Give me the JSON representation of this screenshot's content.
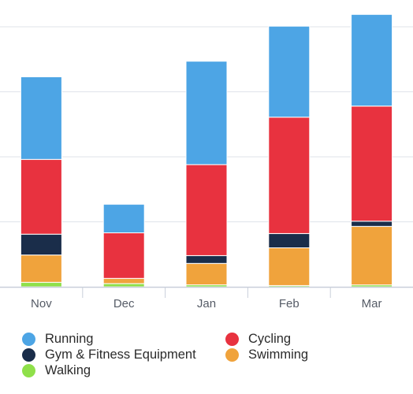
{
  "chart_data": {
    "type": "bar",
    "stacked": true,
    "categories": [
      "Nov",
      "Dec",
      "Jan",
      "Feb",
      "Mar"
    ],
    "series": [
      {
        "name": "Walking",
        "color": "#8fe04a",
        "values": [
          0.7,
          0.5,
          0.3,
          0.2,
          0.3
        ]
      },
      {
        "name": "Swimming",
        "color": "#f0a33c",
        "values": [
          4.2,
          0.8,
          3.3,
          5.8,
          9.0
        ]
      },
      {
        "name": "Gym & Fitness Equipment",
        "color": "#1a2d4a",
        "values": [
          3.2,
          0,
          1.2,
          2.2,
          0.8
        ]
      },
      {
        "name": "Cycling",
        "color": "#e8323f",
        "values": [
          11.5,
          7.0,
          14.0,
          17.9,
          17.7
        ]
      },
      {
        "name": "Running",
        "color": "#4da5e5",
        "values": [
          12.7,
          4.4,
          15.9,
          14.0,
          14.1
        ]
      }
    ],
    "ylim": [
      0,
      42
    ],
    "y_gridlines": [
      0,
      10,
      20,
      30,
      40
    ],
    "y_tick_labels_shown": false,
    "grid": true,
    "legend_position": "bottom",
    "legend_order": [
      "Running",
      "Cycling",
      "Gym & Fitness Equipment",
      "Swimming",
      "Walking"
    ]
  }
}
